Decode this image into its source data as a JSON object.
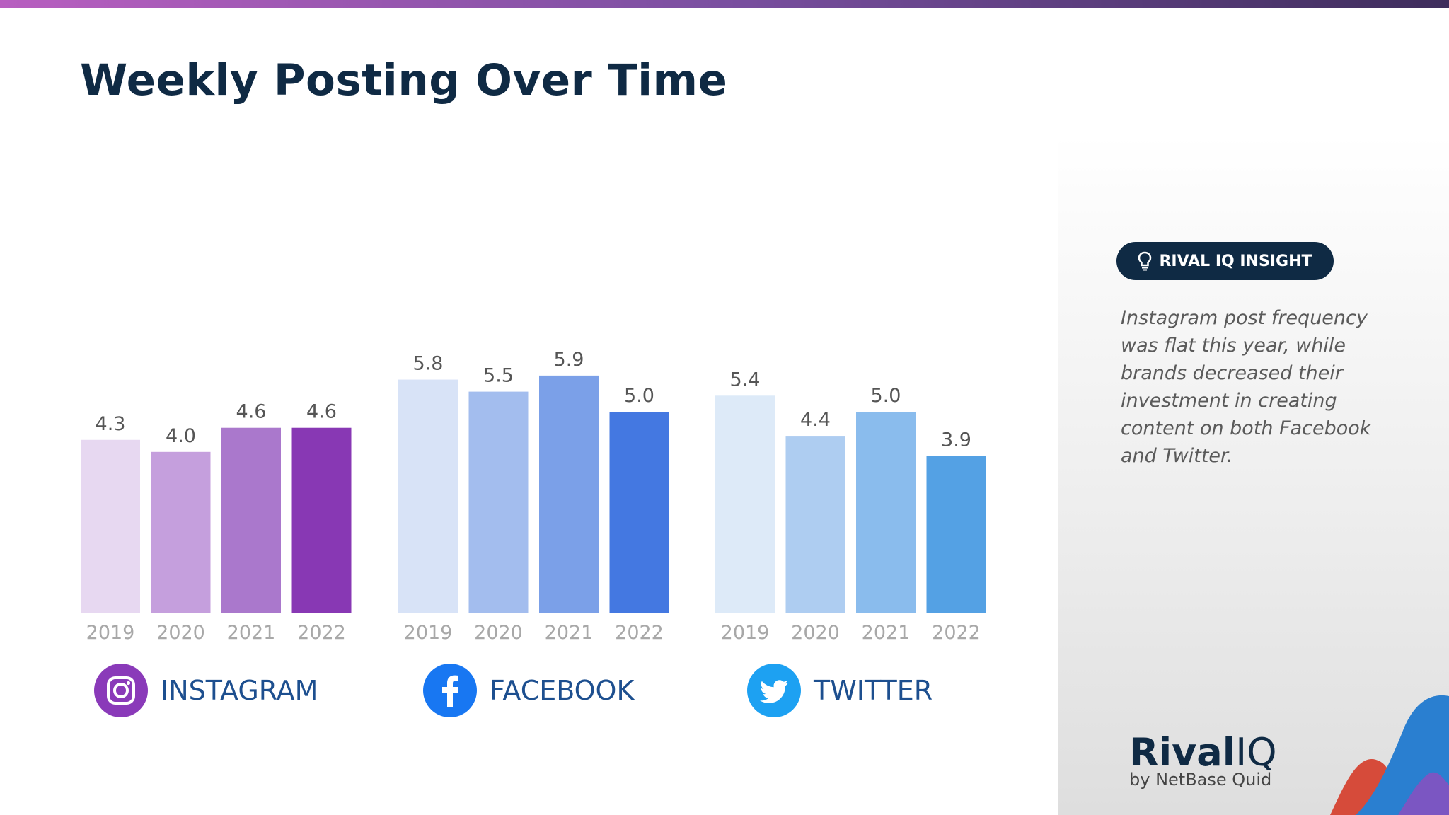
{
  "title": "Weekly Posting Over Time",
  "insight": {
    "badge_label": "RIVAL IQ INSIGHT",
    "text": "Instagram post frequency was flat this year, while brands decreased their investment in creating content on both Facebook and Twitter."
  },
  "logo": {
    "main": "Rival",
    "iq": "IQ",
    "sub": "by NetBase Quid"
  },
  "platforms": [
    {
      "name": "INSTAGRAM",
      "icon": "instagram-icon",
      "icon_color": "#8a3ab9"
    },
    {
      "name": "FACEBOOK",
      "icon": "facebook-icon",
      "icon_color": "#1877f2"
    },
    {
      "name": "TWITTER",
      "icon": "twitter-icon",
      "icon_color": "#1da1f2"
    }
  ],
  "chart_data": {
    "type": "bar",
    "title": "Weekly Posting Over Time",
    "xlabel": "",
    "ylabel": "",
    "ylim": [
      0,
      6
    ],
    "grid": false,
    "groups": [
      {
        "name": "INSTAGRAM",
        "categories": [
          "2019",
          "2020",
          "2021",
          "2022"
        ],
        "values": [
          4.3,
          4.0,
          4.6,
          4.6
        ],
        "labels": [
          "4.3",
          "4.0",
          "4.6",
          "4.6"
        ],
        "colors": [
          "#e7d8f1",
          "#c59fdd",
          "#aa78cc",
          "#8838b4"
        ]
      },
      {
        "name": "FACEBOOK",
        "categories": [
          "2019",
          "2020",
          "2021",
          "2022"
        ],
        "values": [
          5.8,
          5.5,
          5.9,
          5.0
        ],
        "labels": [
          "5.8",
          "5.5",
          "5.9",
          "5.0"
        ],
        "colors": [
          "#d8e3f7",
          "#a3bdee",
          "#7ba0e8",
          "#4478e1"
        ]
      },
      {
        "name": "TWITTER",
        "categories": [
          "2019",
          "2020",
          "2021",
          "2022"
        ],
        "values": [
          5.4,
          4.4,
          5.0,
          3.9
        ],
        "labels": [
          "5.4",
          "4.4",
          "5.0",
          "3.9"
        ],
        "colors": [
          "#ddeaf8",
          "#aecdf1",
          "#8abced",
          "#54a1e4"
        ]
      }
    ]
  }
}
